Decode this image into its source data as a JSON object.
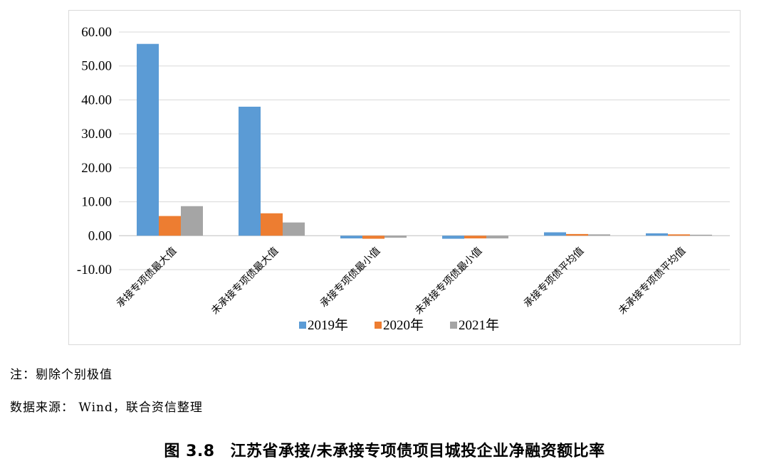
{
  "chart_data": {
    "type": "bar",
    "categories": [
      "承接专项债最大值",
      "未承接专项债最大值",
      "承接专项债最小值",
      "未承接专项债最小值",
      "承接专项债平均值",
      "未承接专项债平均值"
    ],
    "series": [
      {
        "name": "2019年",
        "color": "#5b9bd5",
        "values": [
          56.5,
          38.0,
          -0.8,
          -0.9,
          1.0,
          0.7
        ]
      },
      {
        "name": "2020年",
        "color": "#ed7d31",
        "values": [
          5.8,
          6.6,
          -0.9,
          -0.8,
          0.5,
          0.4
        ]
      },
      {
        "name": "2021年",
        "color": "#a5a5a5",
        "values": [
          8.7,
          3.9,
          -0.6,
          -0.8,
          0.4,
          0.3
        ]
      }
    ],
    "yticks": [
      "60.00",
      "50.00",
      "40.00",
      "30.00",
      "20.00",
      "10.00",
      "0.00",
      "-10.00"
    ],
    "ylim": [
      -10,
      60
    ],
    "grid": true,
    "legend_position": "bottom"
  },
  "note": "注：剔除个别极值",
  "source": "数据来源： Wind，联合资信整理",
  "caption": {
    "number": "图 3.8",
    "title": "江苏省承接/未承接专项债项目城投企业净融资额比率"
  }
}
